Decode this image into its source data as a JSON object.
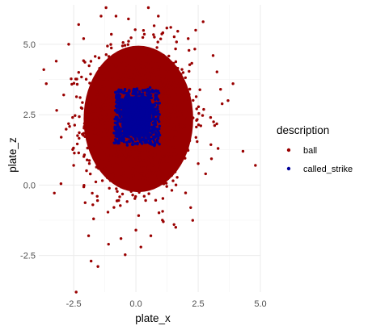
{
  "chart_data": {
    "type": "scatter",
    "xlabel": "plate_x",
    "ylabel": "plate_z",
    "xlim": [
      -3.9,
      5.0
    ],
    "ylim": [
      -3.8,
      6.4
    ],
    "x_ticks": [
      -2.5,
      0.0,
      2.5,
      5.0
    ],
    "x_tick_labels": [
      "-2.5",
      "0.0",
      "2.5",
      "5.0"
    ],
    "y_ticks": [
      -2.5,
      0.0,
      2.5,
      5.0
    ],
    "y_tick_labels": [
      "-2.5",
      "0.0",
      "2.5",
      "5.0"
    ],
    "grid": true,
    "legend": {
      "title": "description",
      "position": "right",
      "entries": [
        {
          "label": "ball",
          "color": "#990000"
        },
        {
          "label": "called_strike",
          "color": "#000099"
        }
      ]
    },
    "series": [
      {
        "name": "ball",
        "color": "#990000",
        "points": [
          [
            -3.7,
            4.1
          ],
          [
            -3.6,
            3.6
          ],
          [
            -3.2,
            4.4
          ],
          [
            -3.0,
            1.7
          ],
          [
            -2.9,
            3.2
          ],
          [
            -2.7,
            5.0
          ],
          [
            -2.5,
            0.7
          ],
          [
            -2.3,
            5.7
          ],
          [
            -2.1,
            5.2
          ],
          [
            -1.9,
            -1.8
          ],
          [
            -1.8,
            -2.7
          ],
          [
            -1.7,
            -1.2
          ],
          [
            -1.4,
            6.0
          ],
          [
            -1.2,
            6.3
          ],
          [
            -1.1,
            -2.1
          ],
          [
            -0.8,
            6.0
          ],
          [
            -0.6,
            -1.9
          ],
          [
            -0.3,
            5.9
          ],
          [
            0.0,
            -1.6
          ],
          [
            0.2,
            -2.2
          ],
          [
            0.5,
            6.3
          ],
          [
            0.6,
            -1.8
          ],
          [
            0.9,
            6.0
          ],
          [
            1.1,
            -1.3
          ],
          [
            1.4,
            5.6
          ],
          [
            1.6,
            -1.5
          ],
          [
            2.1,
            5.2
          ],
          [
            2.2,
            -0.8
          ],
          [
            2.4,
            5.5
          ],
          [
            2.7,
            5.8
          ],
          [
            2.8,
            0.4
          ],
          [
            3.0,
            2.4
          ],
          [
            3.1,
            4.6
          ],
          [
            3.3,
            1.3
          ],
          [
            3.4,
            3.4
          ],
          [
            3.7,
            3.0
          ],
          [
            3.9,
            3.6
          ],
          [
            4.3,
            1.2
          ],
          [
            4.8,
            0.7
          ],
          [
            -2.4,
            -3.8
          ]
        ]
      },
      {
        "name": "called_strike",
        "color": "#000099",
        "points": [
          [
            -0.8,
            2.8
          ],
          [
            -0.6,
            1.8
          ],
          [
            -0.5,
            3.3
          ],
          [
            -0.3,
            2.0
          ],
          [
            0.0,
            3.4
          ],
          [
            0.2,
            1.6
          ],
          [
            0.5,
            3.2
          ],
          [
            0.7,
            2.2
          ],
          [
            0.8,
            2.7
          ],
          [
            0.0,
            2.5
          ]
        ]
      }
    ]
  }
}
